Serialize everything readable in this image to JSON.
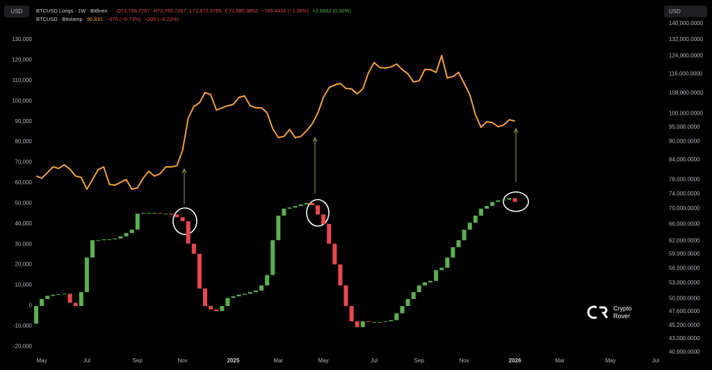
{
  "header": {
    "left_unit": "USD",
    "right_unit": "USD",
    "line1": [
      "O72,755.7267",
      "H72,755.7267",
      "L71,972.5765",
      "C71,985.9852",
      "−769.4434 (−1.06%)",
      "+2.6932 (0.00%)"
    ],
    "line2": [
      "90,831",
      "−670 (−0.73%)",
      "−200 (−0.22%)"
    ],
    "watermark": [
      "Crypto",
      "Rover"
    ]
  },
  "chart_data": {
    "type": "candlestick",
    "categories": [
      null,
      "May",
      null,
      null,
      null,
      null,
      null,
      null,
      null,
      "Jul",
      null,
      null,
      null,
      null,
      null,
      null,
      null,
      null,
      "Sep",
      null,
      null,
      null,
      null,
      null,
      null,
      null,
      "Nov",
      null,
      null,
      null,
      null,
      null,
      null,
      null,
      null,
      "2025",
      null,
      null,
      null,
      null,
      null,
      null,
      null,
      "Mar",
      null,
      null,
      null,
      null,
      null,
      null,
      null,
      "May",
      null,
      null,
      null,
      null,
      null,
      null,
      null,
      null,
      "Jul",
      null,
      null,
      null,
      null,
      null,
      null,
      null,
      "Sep",
      null,
      null,
      null,
      null,
      null,
      null,
      null,
      "Nov",
      null,
      null,
      null,
      null,
      null,
      null,
      null,
      null,
      "2026",
      null,
      null,
      null,
      null,
      null,
      null,
      null,
      "Mar",
      null,
      null,
      null,
      null,
      null,
      null,
      null,
      null,
      "May",
      null,
      null,
      null,
      null,
      null,
      null,
      null,
      "Jul"
    ],
    "series": [
      {
        "name": "BTCUSD · Bitstamp",
        "type": "line",
        "axis": "y",
        "color": "#f5a33c",
        "values": [
          63300,
          62300,
          65000,
          67800,
          67100,
          68800,
          66700,
          63300,
          62700,
          56900,
          61600,
          66400,
          67800,
          59300,
          58900,
          60300,
          61600,
          56900,
          57600,
          62300,
          65700,
          63300,
          64400,
          67800,
          67800,
          68400,
          75900,
          91600,
          97400,
          99100,
          104200,
          103100,
          95600,
          96700,
          97700,
          98400,
          101800,
          102500,
          97700,
          96700,
          96700,
          94300,
          86500,
          82100,
          82700,
          86100,
          82100,
          82700,
          85400,
          88800,
          94000,
          101800,
          106500,
          107900,
          108600,
          106200,
          105900,
          103500,
          105900,
          113800,
          118800,
          116400,
          116100,
          116700,
          118100,
          115400,
          113300,
          109300,
          109900,
          115400,
          115400,
          114000,
          122200,
          111300,
          112000,
          114000,
          108600,
          103100,
          93300,
          87100,
          89900,
          89500,
          87500,
          88200,
          90900,
          90200,
          null,
          null,
          null,
          null,
          null,
          null,
          null,
          null,
          null,
          null,
          null,
          null,
          null,
          null,
          null,
          null,
          null,
          null,
          null,
          null,
          null,
          null,
          null,
          null,
          null
        ]
      },
      {
        "name": "BTCUSD Longs · 1W · Bitfinex",
        "type": "candlestick",
        "axis": "y2",
        "up_color": "#5bb04f",
        "down_color": "#e8484e",
        "open": [
          45500,
          48600,
          49900,
          50500,
          50700,
          50800,
          50900,
          49200,
          48600,
          51200,
          58300,
          62200,
          62200,
          62400,
          62400,
          62600,
          63100,
          63900,
          64700,
          68700,
          68900,
          68900,
          68900,
          68700,
          68700,
          68500,
          67800,
          66800,
          61400,
          59100,
          51900,
          48600,
          48000,
          47700,
          48600,
          50100,
          50400,
          50700,
          50900,
          51200,
          51500,
          52500,
          54600,
          62200,
          68200,
          70000,
          70300,
          70700,
          71100,
          71500,
          70900,
          68500,
          66100,
          61400,
          56800,
          52500,
          48600,
          45900,
          44900,
          45900,
          45800,
          45800,
          45800,
          45900,
          46100,
          47300,
          48600,
          49900,
          51200,
          52500,
          53100,
          53400,
          55600,
          56100,
          58300,
          60600,
          62200,
          64700,
          66400,
          68200,
          70000,
          70700,
          71800,
          72200,
          72400,
          72800,
          null,
          null,
          null,
          null,
          null,
          null,
          null,
          null,
          null,
          null,
          null,
          null,
          null,
          null,
          null,
          null,
          null,
          null,
          null,
          null,
          null,
          null,
          null,
          null,
          null
        ],
        "close": [
          48600,
          49900,
          50500,
          50700,
          50800,
          50900,
          49200,
          48600,
          51200,
          58300,
          62200,
          62200,
          62400,
          62400,
          62600,
          63100,
          63900,
          64700,
          68700,
          68900,
          68900,
          68900,
          68700,
          68700,
          68500,
          67800,
          66800,
          61400,
          59100,
          51900,
          48600,
          48000,
          47700,
          48600,
          50100,
          50400,
          50700,
          50900,
          51200,
          51500,
          52500,
          54600,
          62200,
          68200,
          70000,
          70300,
          70700,
          71100,
          71500,
          70900,
          68500,
          66100,
          61400,
          56800,
          52500,
          48600,
          45900,
          44900,
          45900,
          45800,
          45800,
          45800,
          45900,
          46100,
          47300,
          48600,
          49900,
          51200,
          52500,
          53100,
          53400,
          55600,
          56100,
          58300,
          60600,
          62200,
          64700,
          66400,
          68200,
          70000,
          70700,
          71800,
          72200,
          72400,
          72800,
          71800,
          null,
          null,
          null,
          null,
          null,
          null,
          null,
          null,
          null,
          null,
          null,
          null,
          null,
          null,
          null,
          null,
          null,
          null,
          null,
          null,
          null,
          null,
          null,
          null,
          null
        ]
      }
    ],
    "ylim": [
      -24000,
      149400
    ],
    "yticks": [
      {
        "value": 130000,
        "label": "130,000"
      },
      {
        "value": 120000,
        "label": "120,000"
      },
      {
        "value": 110000,
        "label": "110,000"
      },
      {
        "value": 100000,
        "label": "100,000"
      },
      {
        "value": 90000,
        "label": "90,000"
      },
      {
        "value": 80000,
        "label": "80,000"
      },
      {
        "value": 70000,
        "label": "70,000"
      },
      {
        "value": 60000,
        "label": "60,000"
      },
      {
        "value": 50000,
        "label": "50,000"
      },
      {
        "value": 40000,
        "label": "40,000"
      },
      {
        "value": 30000,
        "label": "30,000"
      },
      {
        "value": 20000,
        "label": "20,000"
      },
      {
        "value": 10000,
        "label": "10,000"
      },
      0,
      {
        "value": -10000,
        "label": "-10,000"
      },
      {
        "value": -20000,
        "label": "-20,000"
      }
    ],
    "y2lim": [
      40500,
      153000
    ],
    "y2log": true,
    "y2ticks": [
      {
        "value": 140000,
        "label": "140,000.0000"
      },
      {
        "value": 132000,
        "label": "132,000.0000"
      },
      {
        "value": 124000,
        "label": "124,000.0000"
      },
      {
        "value": 116000,
        "label": "116,000.0000"
      },
      {
        "value": 108000,
        "label": "108,000.0000"
      },
      {
        "value": 100000,
        "label": "100,000.0000"
      },
      {
        "value": 95000,
        "label": "95,000.0000"
      },
      {
        "value": 90000,
        "label": "90,000.0000"
      },
      {
        "value": 84000,
        "label": "84,000.0000"
      },
      {
        "value": 78000,
        "label": "78,000.0000"
      },
      {
        "value": 74000,
        "label": "74,000.0000"
      },
      {
        "value": 70000,
        "label": "70,000.0000"
      },
      {
        "value": 66000,
        "label": "66,000.0000"
      },
      {
        "value": 62000,
        "label": "62,000.0000"
      },
      {
        "value": 59000,
        "label": "59,000.0000"
      },
      {
        "value": 56000,
        "label": "56,000.0000"
      },
      {
        "value": 53000,
        "label": "53,000.0000"
      },
      {
        "value": 50000,
        "label": "50,000.0000"
      },
      {
        "value": 47600,
        "label": "47,600.0000"
      },
      {
        "value": 45200,
        "label": "45,200.0000"
      },
      {
        "value": 43000,
        "label": "43,000.0000"
      },
      {
        "value": 40900,
        "label": "40,900.0000"
      }
    ],
    "grid": false
  }
}
